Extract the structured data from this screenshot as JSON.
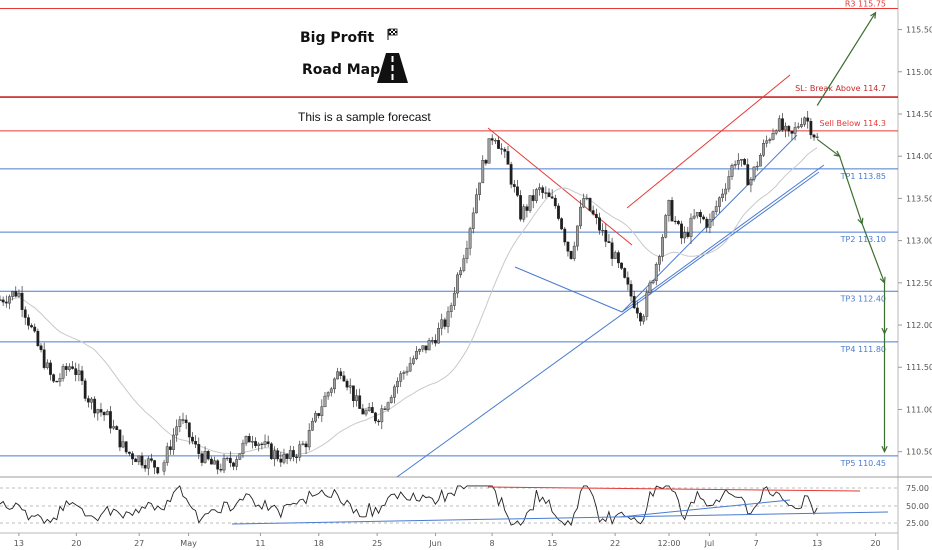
{
  "branding": {
    "line1": "Big Profit",
    "line2": "Road Map",
    "flag_icon": "checkered-flag-icon",
    "road_icon": "road-icon"
  },
  "note": "This is a sample forecast",
  "chart_data": {
    "type": "candlestick",
    "ylim": [
      110.2,
      115.85
    ],
    "y_ticks": [
      "115.500",
      "115.000",
      "114.500",
      "114.000",
      "113.500",
      "113.000",
      "112.500",
      "112.000",
      "111.500",
      "111.000",
      "110.500"
    ],
    "y_tick_values": [
      115.5,
      115.0,
      114.5,
      114.0,
      113.5,
      113.0,
      112.5,
      112.0,
      111.5,
      111.0,
      110.5
    ],
    "x_ticks": [
      "13",
      "20",
      "27",
      "May",
      "11",
      "18",
      "25",
      "Jun",
      "8",
      "15",
      "22",
      "12:00",
      "Jul",
      "7",
      "13",
      "20"
    ],
    "x_tick_positions": [
      0.021,
      0.085,
      0.155,
      0.21,
      0.29,
      0.355,
      0.42,
      0.485,
      0.548,
      0.615,
      0.685,
      0.745,
      0.79,
      0.842,
      0.91,
      0.975
    ],
    "levels": [
      {
        "label": "R3 115.75",
        "value": 115.75,
        "color": "#e53935",
        "role": "resistance"
      },
      {
        "label": "SL: Break Above 114.7",
        "value": 114.7,
        "color": "#c62828",
        "role": "stop"
      },
      {
        "label": "Sell Below 114.3",
        "value": 114.3,
        "color": "#e53935",
        "role": "entry"
      },
      {
        "label": "TP1 113.85",
        "value": 113.85,
        "color": "#4a7bd1",
        "role": "target"
      },
      {
        "label": "TP2 113.10",
        "value": 113.1,
        "color": "#4a7bd1",
        "role": "target"
      },
      {
        "label": "TP3 112.40",
        "value": 112.4,
        "color": "#4a7bd1",
        "role": "target"
      },
      {
        "label": "TP4 111.80",
        "value": 111.8,
        "color": "#4a7bd1",
        "role": "target"
      },
      {
        "label": "TP5 110.45",
        "value": 110.45,
        "color": "#4a7bd1",
        "role": "target"
      }
    ],
    "price_path": [
      [
        0.0,
        112.3
      ],
      [
        0.02,
        112.4
      ],
      [
        0.04,
        111.8
      ],
      [
        0.06,
        111.3
      ],
      [
        0.08,
        111.55
      ],
      [
        0.1,
        111.1
      ],
      [
        0.12,
        110.9
      ],
      [
        0.14,
        110.5
      ],
      [
        0.16,
        110.4
      ],
      [
        0.18,
        110.3
      ],
      [
        0.2,
        110.9
      ],
      [
        0.22,
        110.5
      ],
      [
        0.24,
        110.3
      ],
      [
        0.26,
        110.4
      ],
      [
        0.28,
        110.7
      ],
      [
        0.3,
        110.5
      ],
      [
        0.32,
        110.4
      ],
      [
        0.34,
        110.6
      ],
      [
        0.36,
        111.1
      ],
      [
        0.38,
        111.5
      ],
      [
        0.4,
        111.0
      ],
      [
        0.42,
        110.9
      ],
      [
        0.44,
        111.3
      ],
      [
        0.46,
        111.6
      ],
      [
        0.48,
        111.8
      ],
      [
        0.5,
        112.1
      ],
      [
        0.505,
        112.4
      ],
      [
        0.52,
        113.0
      ],
      [
        0.535,
        113.8
      ],
      [
        0.55,
        114.3
      ],
      [
        0.565,
        113.9
      ],
      [
        0.58,
        113.3
      ],
      [
        0.6,
        113.6
      ],
      [
        0.62,
        113.4
      ],
      [
        0.635,
        112.8
      ],
      [
        0.65,
        113.5
      ],
      [
        0.665,
        113.2
      ],
      [
        0.68,
        112.9
      ],
      [
        0.7,
        112.4
      ],
      [
        0.715,
        112.1
      ],
      [
        0.73,
        112.7
      ],
      [
        0.745,
        113.4
      ],
      [
        0.76,
        113.0
      ],
      [
        0.775,
        113.3
      ],
      [
        0.79,
        113.2
      ],
      [
        0.805,
        113.6
      ],
      [
        0.82,
        114.0
      ],
      [
        0.835,
        113.7
      ],
      [
        0.85,
        114.1
      ],
      [
        0.865,
        114.4
      ],
      [
        0.88,
        114.2
      ],
      [
        0.895,
        114.5
      ],
      [
        0.91,
        114.2
      ]
    ],
    "projected_path": [
      [
        0.91,
        114.2
      ],
      [
        0.935,
        114.0
      ],
      [
        0.96,
        113.2
      ],
      [
        0.985,
        112.5
      ],
      [
        1.0,
        111.9
      ],
      [
        1.02,
        110.5
      ]
    ],
    "breakout_path": [
      [
        0.91,
        114.6
      ],
      [
        0.975,
        115.7
      ]
    ],
    "oscillator": {
      "y_ticks": [
        "75.00",
        "50.00",
        "25.00"
      ],
      "y_tick_values": [
        75,
        50,
        25
      ]
    }
  }
}
